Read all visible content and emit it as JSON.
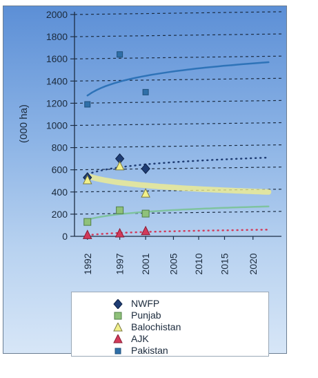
{
  "chart_data": {
    "type": "scatter",
    "ylabel": "(000 ha)",
    "xlabel": "",
    "ylim": [
      0,
      2000
    ],
    "yticks": [
      0,
      200,
      400,
      600,
      800,
      1000,
      1200,
      1400,
      1600,
      1800,
      2000
    ],
    "xticks": [
      "1992",
      "1997",
      "2001",
      "2005",
      "2010",
      "2015",
      "2020"
    ],
    "grid": "horizontal-dashed",
    "legend_position": "bottom",
    "series": [
      {
        "name": "NWFP",
        "marker": "diamond",
        "color": "#1f3d74",
        "points": [
          {
            "x": 1992,
            "y": 530
          },
          {
            "x": 1997,
            "y": 700
          },
          {
            "x": 2001,
            "y": 610
          }
        ],
        "trend": {
          "style": "dotted",
          "color": "#1f3d74",
          "x": [
            1992,
            2020
          ],
          "y": [
            560,
            710
          ]
        }
      },
      {
        "name": "Punjab",
        "marker": "square",
        "color": "#8fc17a",
        "points": [
          {
            "x": 1992,
            "y": 130
          },
          {
            "x": 1997,
            "y": 235
          },
          {
            "x": 2001,
            "y": 205
          }
        ],
        "trend": {
          "style": "solid",
          "color": "#7fc3a0",
          "x": [
            1992,
            2020
          ],
          "y": [
            150,
            270
          ]
        }
      },
      {
        "name": "Balochistan",
        "marker": "triangle",
        "color": "#f2f08a",
        "points": [
          {
            "x": 1992,
            "y": 505
          },
          {
            "x": 1997,
            "y": 630
          },
          {
            "x": 2001,
            "y": 385
          }
        ],
        "trend": {
          "style": "solid",
          "color": "#f5f08a",
          "x": [
            1992,
            2020
          ],
          "y": [
            545,
            400
          ]
        }
      },
      {
        "name": "AJK",
        "marker": "triangle",
        "color": "#d23a5a",
        "points": [
          {
            "x": 1992,
            "y": 10
          },
          {
            "x": 1997,
            "y": 25
          },
          {
            "x": 2001,
            "y": 45
          }
        ],
        "trend": {
          "style": "dotted",
          "color": "#d23a5a",
          "x": [
            1992,
            2020
          ],
          "y": [
            10,
            60
          ]
        }
      },
      {
        "name": "Pakistan",
        "marker": "square-small",
        "color": "#2f6fa8",
        "points": [
          {
            "x": 1992,
            "y": 1190
          },
          {
            "x": 1997,
            "y": 1640
          },
          {
            "x": 2001,
            "y": 1300
          }
        ],
        "trend": {
          "style": "solid",
          "color": "#2e73b8",
          "x": [
            1992,
            2020
          ],
          "y": [
            1270,
            1570
          ]
        }
      }
    ]
  }
}
